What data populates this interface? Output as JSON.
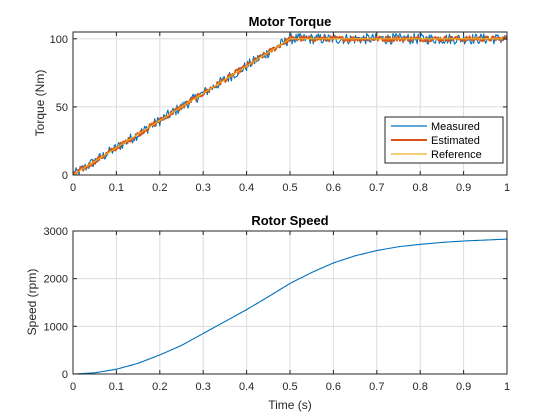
{
  "chart_data": [
    {
      "type": "line",
      "title": "Motor Torque",
      "xlabel": "",
      "ylabel": "Torque (Nm)",
      "xlim": [
        0,
        1
      ],
      "ylim": [
        0,
        105
      ],
      "xticks": [
        "0",
        "0.1",
        "0.2",
        "0.3",
        "0.4",
        "0.5",
        "0.6",
        "0.7",
        "0.8",
        "0.9",
        "1"
      ],
      "yticks": [
        "0",
        "50",
        "100"
      ],
      "grid": true,
      "legend_position": "right",
      "series": [
        {
          "name": "Measured",
          "color": "#0072BD",
          "style": "noisy",
          "noise_amplitude": 4,
          "x": [
            0,
            0.1,
            0.2,
            0.3,
            0.4,
            0.5,
            0.6,
            0.7,
            0.8,
            0.9,
            1.0
          ],
          "values": [
            0,
            20,
            40,
            60,
            80,
            100,
            100,
            100,
            100,
            100,
            100
          ]
        },
        {
          "name": "Estimated",
          "color": "#D95319",
          "style": "noisy",
          "noise_amplitude": 2,
          "x": [
            0,
            0.1,
            0.2,
            0.3,
            0.4,
            0.5,
            0.6,
            0.7,
            0.8,
            0.9,
            1.0
          ],
          "values": [
            0,
            20,
            40,
            60,
            80,
            100,
            100,
            100,
            100,
            100,
            100
          ]
        },
        {
          "name": "Reference",
          "color": "#EDB120",
          "style": "smooth",
          "x": [
            0,
            0.5,
            1.0
          ],
          "values": [
            0,
            100,
            100
          ]
        }
      ]
    },
    {
      "type": "line",
      "title": "Rotor Speed",
      "xlabel": "Time (s)",
      "ylabel": "Speed (rpm)",
      "xlim": [
        0,
        1
      ],
      "ylim": [
        0,
        3000
      ],
      "xticks": [
        "0",
        "0.1",
        "0.2",
        "0.3",
        "0.4",
        "0.5",
        "0.6",
        "0.7",
        "0.8",
        "0.9",
        "1"
      ],
      "yticks": [
        "0",
        "1000",
        "2000",
        "3000"
      ],
      "grid": true,
      "series": [
        {
          "color": "#0072BD",
          "style": "smooth",
          "x": [
            0,
            0.05,
            0.1,
            0.15,
            0.2,
            0.25,
            0.3,
            0.35,
            0.4,
            0.45,
            0.5,
            0.55,
            0.6,
            0.65,
            0.7,
            0.75,
            0.8,
            0.85,
            0.9,
            0.95,
            1.0
          ],
          "values": [
            0,
            25,
            100,
            225,
            400,
            600,
            850,
            1100,
            1350,
            1620,
            1900,
            2130,
            2330,
            2480,
            2590,
            2670,
            2720,
            2760,
            2790,
            2810,
            2830
          ]
        }
      ]
    }
  ]
}
